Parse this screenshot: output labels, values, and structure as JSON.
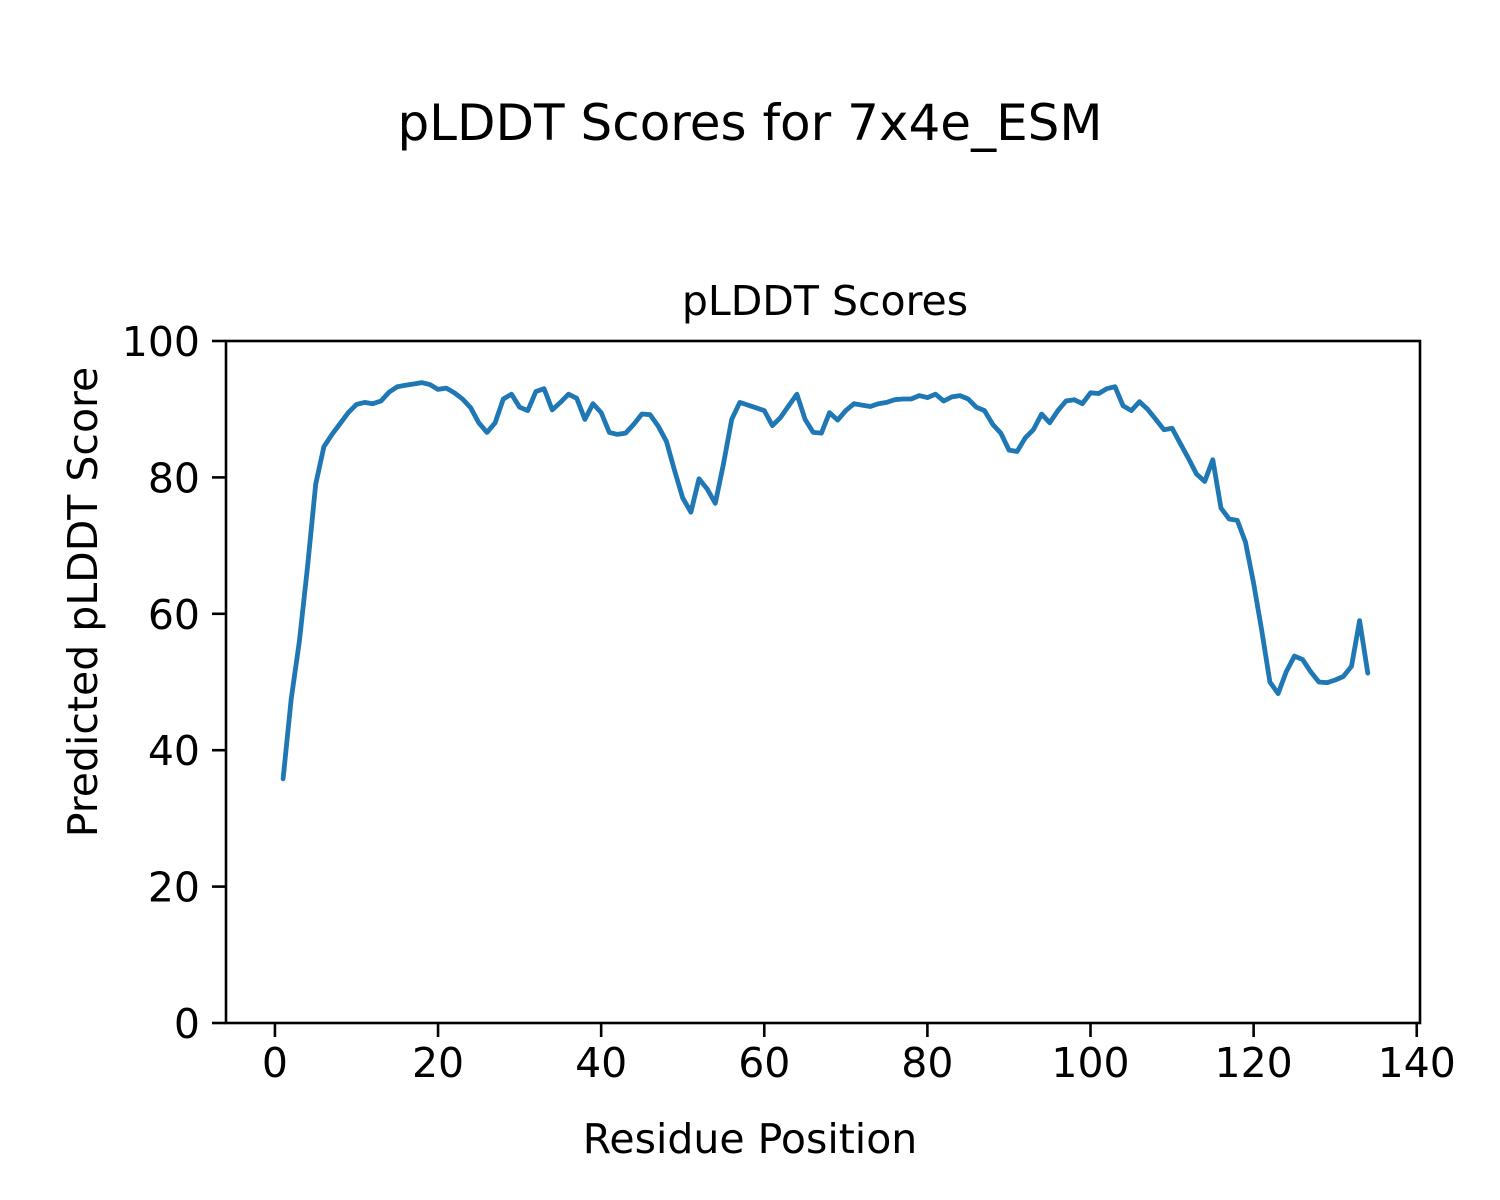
{
  "figure": {
    "suptitle": "pLDDT Scores for 7x4e_ESM",
    "background": "#ffffff",
    "text_color": "#000000"
  },
  "chart_data": {
    "type": "line",
    "title": "pLDDT Scores",
    "xlabel": "Residue Position",
    "ylabel": "Predicted pLDDT Score",
    "legend": "none",
    "grid": false,
    "line_color": "#1f77b4",
    "axis_color": "#000000",
    "xlim": [
      -6.0,
      140.4
    ],
    "ylim": [
      0,
      100
    ],
    "x_ticks": [
      0,
      20,
      40,
      60,
      80,
      100,
      120,
      140
    ],
    "y_ticks": [
      0,
      20,
      40,
      60,
      80,
      100
    ],
    "x": [
      1,
      2,
      3,
      4,
      5,
      6,
      7,
      8,
      9,
      10,
      11,
      12,
      13,
      14,
      15,
      16,
      17,
      18,
      19,
      20,
      21,
      22,
      23,
      24,
      25,
      26,
      27,
      28,
      29,
      30,
      31,
      32,
      33,
      34,
      35,
      36,
      37,
      38,
      39,
      40,
      41,
      42,
      43,
      44,
      45,
      46,
      47,
      48,
      49,
      50,
      51,
      52,
      53,
      54,
      55,
      56,
      57,
      58,
      59,
      60,
      61,
      62,
      63,
      64,
      65,
      66,
      67,
      68,
      69,
      70,
      71,
      72,
      73,
      74,
      75,
      76,
      77,
      78,
      79,
      80,
      81,
      82,
      83,
      84,
      85,
      86,
      87,
      88,
      89,
      90,
      91,
      92,
      93,
      94,
      95,
      96,
      97,
      98,
      99,
      100,
      101,
      102,
      103,
      104,
      105,
      106,
      107,
      108,
      109,
      110,
      111,
      112,
      113,
      114,
      115,
      116,
      117,
      118,
      119,
      120,
      121,
      122,
      123,
      124,
      125,
      126,
      127,
      128,
      129,
      130,
      131,
      132,
      133,
      134
    ],
    "values": [
      35.8,
      47.5,
      56.0,
      67.0,
      79.0,
      84.5,
      86.3,
      87.9,
      89.5,
      90.7,
      91.0,
      90.8,
      91.2,
      92.5,
      93.3,
      93.5,
      93.7,
      93.9,
      93.6,
      92.9,
      93.1,
      92.4,
      91.5,
      90.2,
      88.0,
      86.6,
      88.0,
      91.5,
      92.2,
      90.3,
      89.8,
      92.6,
      93.0,
      89.9,
      91.0,
      92.2,
      91.6,
      88.5,
      90.8,
      89.5,
      86.6,
      86.3,
      86.5,
      87.8,
      89.3,
      89.2,
      87.5,
      85.3,
      81.0,
      77.0,
      74.9,
      79.8,
      78.3,
      76.2,
      82.0,
      88.5,
      91.0,
      90.6,
      90.2,
      89.8,
      87.6,
      88.8,
      90.5,
      92.2,
      88.5,
      86.6,
      86.5,
      89.5,
      88.4,
      89.8,
      90.8,
      90.6,
      90.4,
      90.8,
      91.0,
      91.4,
      91.5,
      91.5,
      92.0,
      91.7,
      92.2,
      91.2,
      91.8,
      92.0,
      91.5,
      90.3,
      89.8,
      87.8,
      86.5,
      84.0,
      83.8,
      85.8,
      87.0,
      89.3,
      88.0,
      89.8,
      91.2,
      91.4,
      90.8,
      92.4,
      92.3,
      93.0,
      93.3,
      90.5,
      89.8,
      91.1,
      90.0,
      88.5,
      87.0,
      87.2,
      85.0,
      82.8,
      80.5,
      79.4,
      82.6,
      75.5,
      73.9,
      73.7,
      70.5,
      64.5,
      57.5,
      50.0,
      48.3,
      51.5,
      53.8,
      53.3,
      51.5,
      50.0,
      49.9,
      50.3,
      50.8,
      52.3,
      59.0,
      51.3
    ]
  }
}
